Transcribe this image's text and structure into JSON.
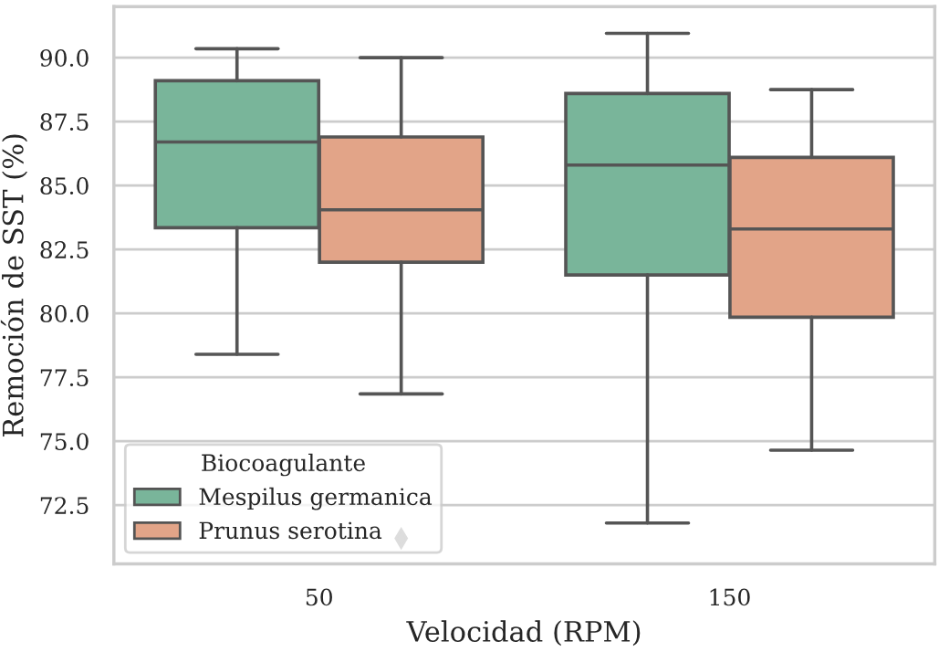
{
  "chart_data": {
    "type": "box",
    "xlabel": "Velocidad (RPM)",
    "ylabel": "Remoción de SST (%)",
    "legend_title": "Biocoagulante",
    "categories": [
      "50",
      "150"
    ],
    "ylim": [
      70.2,
      92.0
    ],
    "yticks": [
      {
        "value": 72.5,
        "label": "72.5"
      },
      {
        "value": 75,
        "label": "75.0"
      },
      {
        "value": 77.5,
        "label": "77.5"
      },
      {
        "value": 80,
        "label": "80.0"
      },
      {
        "value": 82.5,
        "label": "82.5"
      },
      {
        "value": 85,
        "label": "85.0"
      },
      {
        "value": 87.5,
        "label": "87.5"
      },
      {
        "value": 90,
        "label": "90.0"
      }
    ],
    "grid": "y",
    "legend": "bottom left",
    "series": [
      {
        "name": "Mespilus germanica",
        "color": "#79b59a",
        "boxes": [
          {
            "low": 78.4,
            "q1": 83.35,
            "median": 86.7,
            "q3": 89.1,
            "high": 90.35
          },
          {
            "low": 71.8,
            "q1": 81.5,
            "median": 85.8,
            "q3": 88.6,
            "high": 90.95
          }
        ]
      },
      {
        "name": "Prunus serotina",
        "color": "#e2a488",
        "boxes": [
          {
            "low": 76.85,
            "q1": 82.0,
            "median": 84.05,
            "q3": 86.9,
            "high": 90.0,
            "outliers": [
              71.2
            ]
          },
          {
            "low": 74.65,
            "q1": 79.85,
            "median": 83.3,
            "q3": 86.1,
            "high": 88.75
          }
        ]
      }
    ]
  }
}
